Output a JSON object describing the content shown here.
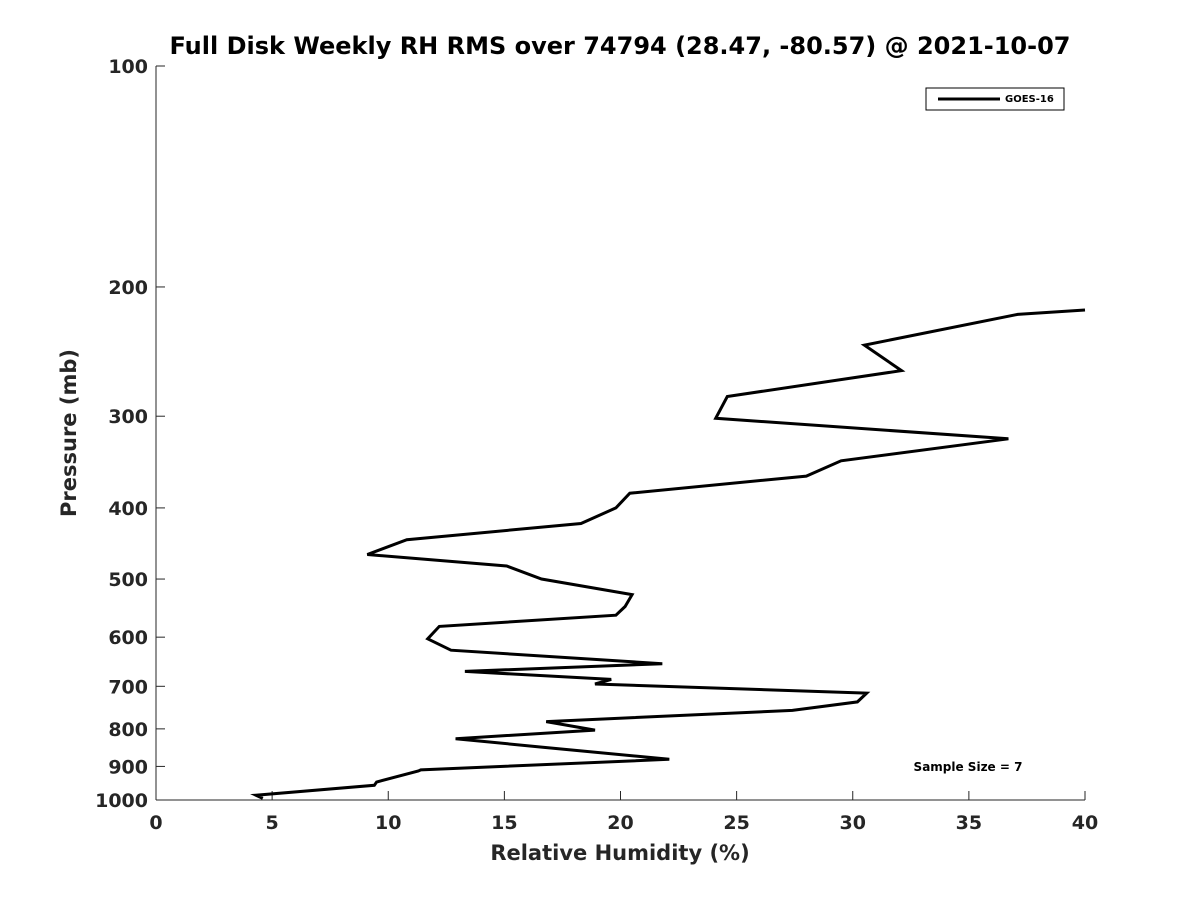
{
  "chart_data": {
    "type": "line",
    "title": "Full Disk Weekly RH RMS over 74794 (28.47, -80.57) @ 2021-10-07",
    "xlabel": "Relative Humidity (%)",
    "ylabel": "Pressure (mb)",
    "xlim": [
      0,
      40
    ],
    "ylim": [
      100,
      1000
    ],
    "yscale": "log",
    "yreversed": true,
    "grid": false,
    "legend_position": "top-right",
    "x_ticks": [
      "0",
      "5",
      "10",
      "15",
      "20",
      "25",
      "30",
      "35",
      "40"
    ],
    "x_tick_values": [
      0,
      5,
      10,
      15,
      20,
      25,
      30,
      35,
      40
    ],
    "y_ticks": [
      "100",
      "200",
      "300",
      "400",
      "500",
      "600",
      "700",
      "800",
      "900",
      "1000"
    ],
    "y_tick_values": [
      100,
      200,
      300,
      400,
      500,
      600,
      700,
      800,
      900,
      1000
    ],
    "series": [
      {
        "name": "GOES-16",
        "color": "#000000",
        "x": [
          40.0,
          37.1,
          30.5,
          32.1,
          24.6,
          24.1,
          36.7,
          29.5,
          28.0,
          20.4,
          19.8,
          18.3,
          10.8,
          9.1,
          15.1,
          16.6,
          20.5,
          20.2,
          19.8,
          12.2,
          11.7,
          12.7,
          21.8,
          13.3,
          19.6,
          18.9,
          30.6,
          30.2,
          27.4,
          16.8,
          18.9,
          12.9,
          16.6,
          22.1,
          11.4,
          11.3,
          9.5,
          9.4,
          4.3,
          4.6
        ],
        "y": [
          215,
          218,
          240,
          260,
          282,
          302,
          322,
          345,
          362,
          382,
          400,
          420,
          442,
          463,
          480,
          500,
          525,
          545,
          560,
          580,
          603,
          625,
          652,
          668,
          685,
          695,
          715,
          735,
          755,
          782,
          803,
          825,
          847,
          880,
          910,
          913,
          945,
          955,
          985,
          995
        ]
      }
    ],
    "annotations": [
      "Sample Size = 7"
    ]
  }
}
